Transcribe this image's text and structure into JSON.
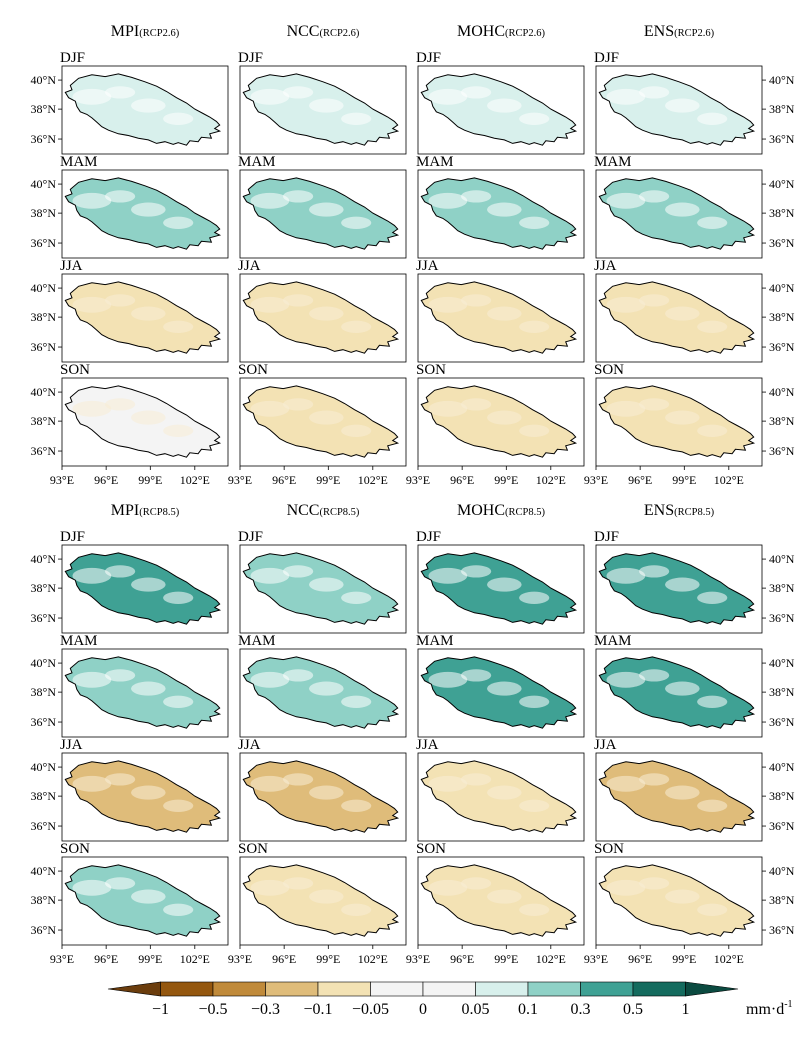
{
  "chart_data": {
    "type": "heatmap",
    "panel_type": "map-grid",
    "models": [
      "MPI",
      "NCC",
      "MOHC",
      "ENS"
    ],
    "seasons": [
      "DJF",
      "MAM",
      "JJA",
      "SON"
    ],
    "blocks": [
      {
        "scenario": "RCP2.6",
        "headers": [
          {
            "model": "MPI",
            "scenario": "(RCP2.6)"
          },
          {
            "model": "NCC",
            "scenario": "(RCP2.6)"
          },
          {
            "model": "MOHC",
            "scenario": "(RCP2.6)"
          },
          {
            "model": "ENS",
            "scenario": "(RCP2.6)"
          }
        ],
        "dominant_value": [
          [
            0.05,
            0.05,
            0.05,
            0.05
          ],
          [
            0.1,
            0.1,
            0.1,
            0.1
          ],
          [
            -0.1,
            -0.1,
            -0.1,
            -0.1
          ],
          [
            -0.05,
            -0.1,
            -0.1,
            -0.1
          ]
        ]
      },
      {
        "scenario": "RCP8.5",
        "headers": [
          {
            "model": "MPI",
            "scenario": "(RCP8.5)"
          },
          {
            "model": "NCC",
            "scenario": "(RCP8.5)"
          },
          {
            "model": "MOHC",
            "scenario": "(RCP8.5)"
          },
          {
            "model": "ENS",
            "scenario": "(RCP8.5)"
          }
        ],
        "dominant_value": [
          [
            0.3,
            0.1,
            0.3,
            0.3
          ],
          [
            0.1,
            0.1,
            0.3,
            0.3
          ],
          [
            -0.3,
            -0.3,
            -0.1,
            -0.3
          ],
          [
            0.1,
            -0.1,
            -0.1,
            -0.1
          ]
        ]
      }
    ],
    "x_ticks": [
      "93°E",
      "96°E",
      "99°E",
      "102°E"
    ],
    "y_ticks": [
      "40°N",
      "38°N",
      "36°N"
    ],
    "colorbar": {
      "levels": [
        "−1",
        "−0.5",
        "−0.3",
        "−0.1",
        "−0.05",
        "0",
        "0.05",
        "0.1",
        "0.3",
        "0.5",
        "1"
      ],
      "unit": "mm·d",
      "unit_exp": "-1",
      "colors": [
        "#6b3d0d",
        "#94570f",
        "#c08a3a",
        "#dfbc7a",
        "#f3e2b4",
        "#f4f4f4",
        "#f4f4f4",
        "#d8f0ec",
        "#8fd1c6",
        "#3fa194",
        "#146b5e",
        "#0b4a40"
      ]
    }
  }
}
